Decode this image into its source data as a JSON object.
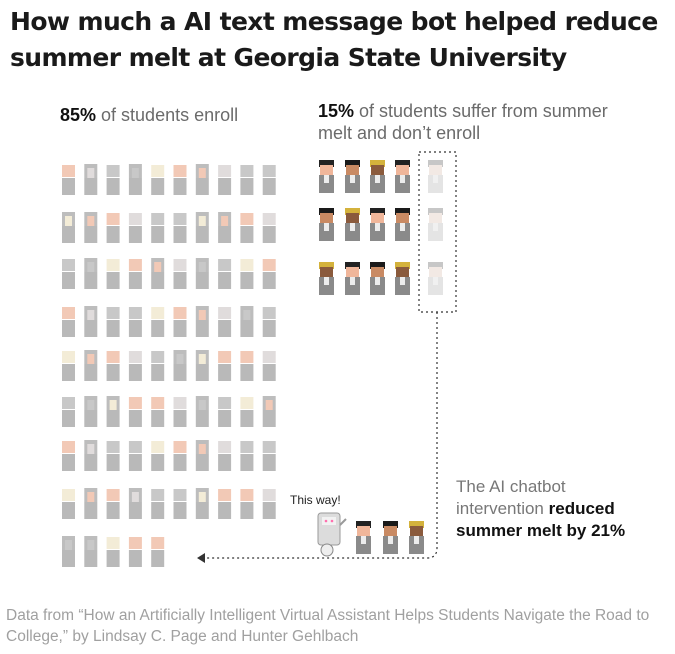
{
  "title": "How much a AI text message bot helped reduce summer melt at Georgia State University",
  "enroll_label": {
    "pct": "85%",
    "text": " of students enroll"
  },
  "melt_label": {
    "pct": "15%",
    "text": " of students suffer from summer melt and don’t enroll"
  },
  "chatbot_label": {
    "text": "The AI chatbot intervention ",
    "bold": "reduced summer melt by 21%"
  },
  "robot_speech": "This way!",
  "source": "Data from “How an Artificially Intelligent Virtual Assistant Helps Students Navigate the Road to College,” by Lindsay C. Page and Hunter Gehlbach",
  "chart_data": {
    "type": "pictogram",
    "unit": "students",
    "groups": [
      {
        "label": "of students enroll",
        "percent": 85,
        "icons": 85
      },
      {
        "label": "of students suffer from summer melt and don’t enroll",
        "percent": 15,
        "icons": 15
      }
    ],
    "intervention": {
      "label": "reduced summer melt by 21%",
      "reduction_percent": 21,
      "icons_redirected": 3
    }
  },
  "colors": {
    "background": "#ffffff",
    "faded_body": "#b9b9b9",
    "faded_skin": [
      "#f2c9b6",
      "#f3ecd7",
      "#c8c8c8",
      "#e0dcdc"
    ],
    "melt_body": "#8a8a8a",
    "melt_hair": [
      "#222222",
      "#1a1a1a",
      "#d4b23c"
    ],
    "melt_skin": [
      "#f0b69a",
      "#c98a63",
      "#8a5a3c"
    ],
    "dotted_line": "#333333"
  }
}
